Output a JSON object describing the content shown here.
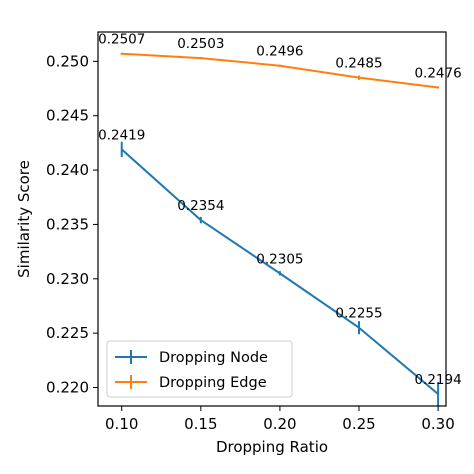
{
  "chart_data": {
    "type": "line",
    "title": "",
    "xlabel": "Dropping Ratio",
    "ylabel": "Similarity Score",
    "x": [
      0.1,
      0.15,
      0.2,
      0.25,
      0.3
    ],
    "x_tick_labels": [
      "0.10",
      "0.15",
      "0.20",
      "0.25",
      "0.30"
    ],
    "y_tick_values": [
      0.22,
      0.225,
      0.23,
      0.235,
      0.24,
      0.245,
      0.25
    ],
    "y_tick_labels": [
      "0.220",
      "0.225",
      "0.230",
      "0.235",
      "0.240",
      "0.245",
      "0.250"
    ],
    "xlim": [
      0.085,
      0.305
    ],
    "ylim": [
      0.2183,
      0.2527
    ],
    "grid": false,
    "legend_position": "lower-left",
    "series": [
      {
        "name": "Dropping Node",
        "color": "#1f77b4",
        "values": [
          0.2419,
          0.2354,
          0.2305,
          0.2255,
          0.2194
        ],
        "value_labels": [
          "0.2419",
          "0.2354",
          "0.2305",
          "0.2255",
          "0.2194"
        ],
        "error": [
          0.0007,
          0.0003,
          0.0002,
          0.0006,
          0.0011
        ]
      },
      {
        "name": "Dropping Edge",
        "color": "#ff7f0e",
        "values": [
          0.2507,
          0.2503,
          0.2496,
          0.2485,
          0.2476
        ],
        "value_labels": [
          "0.2507",
          "0.2503",
          "0.2496",
          "0.2485",
          "0.2476"
        ],
        "error": [
          0.0001,
          0.0001,
          0.0001,
          0.0002,
          0.0001
        ]
      }
    ]
  }
}
